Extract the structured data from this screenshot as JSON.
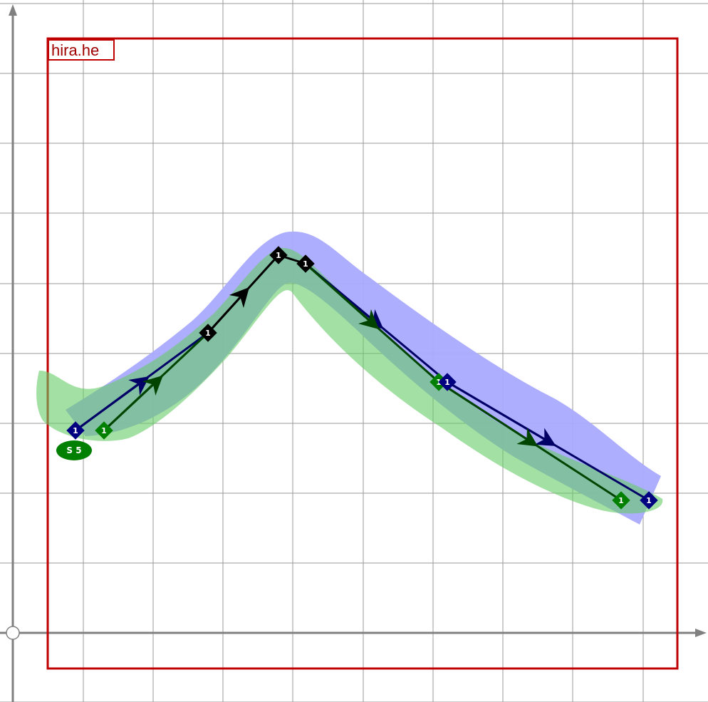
{
  "frame": {
    "label": "hira.he",
    "color": "#c00000"
  },
  "colors": {
    "blue_band": "#aaaaff",
    "green_band": "#88dd88",
    "blue_route": "#000066",
    "green_route": "#004400",
    "black_route": "#000000",
    "blue_node": "#000080",
    "green_node": "#008000",
    "black_node": "#000000",
    "badge": "#008000"
  },
  "nodes": [
    {
      "id": "b1",
      "label": "1",
      "kind": "blue"
    },
    {
      "id": "g1",
      "label": "1",
      "kind": "green"
    },
    {
      "id": "k1",
      "label": "1",
      "kind": "black"
    },
    {
      "id": "k2",
      "label": "1",
      "kind": "black"
    },
    {
      "id": "k3",
      "label": "1",
      "kind": "black"
    },
    {
      "id": "g2",
      "label": "1",
      "kind": "green"
    },
    {
      "id": "b2",
      "label": "1",
      "kind": "blue"
    },
    {
      "id": "g3",
      "label": "1",
      "kind": "green"
    },
    {
      "id": "b3",
      "label": "1",
      "kind": "blue"
    }
  ],
  "badge": {
    "label": "S 5"
  }
}
